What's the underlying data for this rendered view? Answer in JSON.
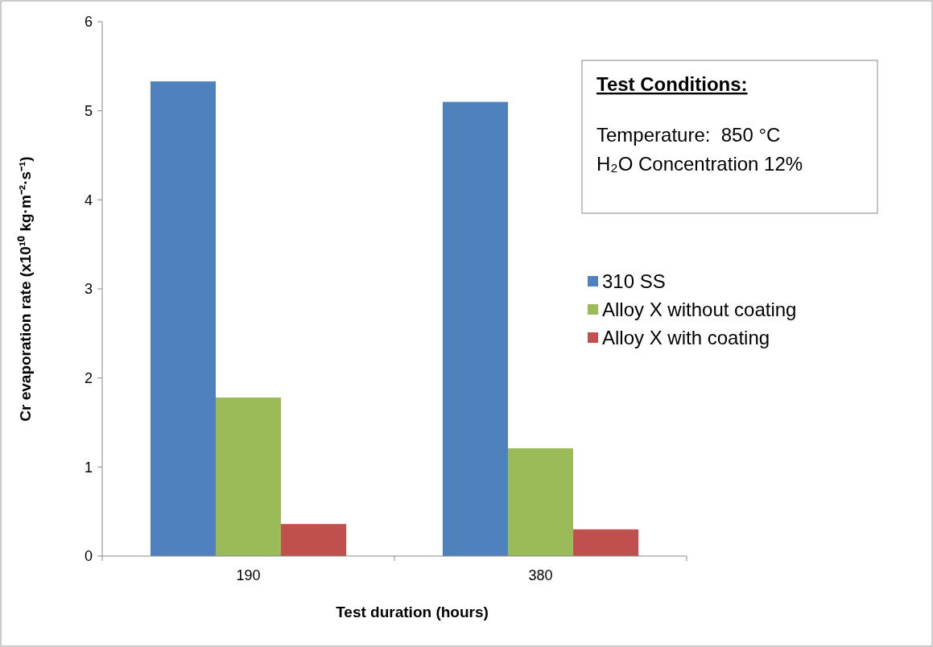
{
  "chart_data": {
    "type": "bar",
    "xlabel": "Test duration (hours)",
    "ylabel": "Cr evaporation rate (x10¹⁰ kg·m⁻²·s⁻¹)",
    "categories": [
      "190",
      "380"
    ],
    "series": [
      {
        "name": "310 SS",
        "color": "#4f81bd",
        "values": [
          5.33,
          5.1
        ]
      },
      {
        "name": "Alloy X without coating",
        "color": "#9bbb59",
        "values": [
          1.78,
          1.21
        ]
      },
      {
        "name": "Alloy X with coating",
        "color": "#c0504d",
        "values": [
          0.36,
          0.3
        ]
      }
    ],
    "ylim": [
      0,
      6
    ],
    "yticks": [
      0,
      1,
      2,
      3,
      4,
      5,
      6
    ],
    "grid": false,
    "legend": "right",
    "annotations": [
      "Test Conditions:",
      "Temperature:  850 °C",
      "H₂O Concentration 12%"
    ]
  }
}
